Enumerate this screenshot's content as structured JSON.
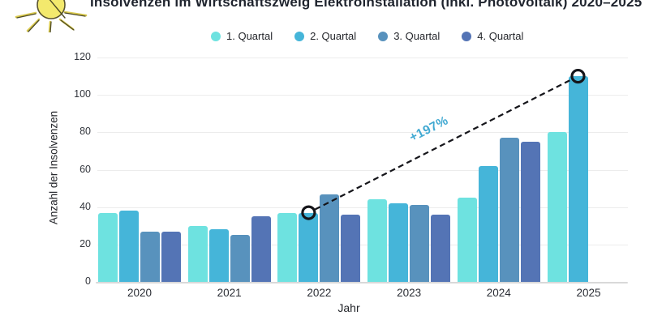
{
  "header": {
    "title": "Insolvenzen im Wirtschaftszweig Elektroinstallation (inkl. Photovoltaik) 2020–2025",
    "logo": "sun-icon"
  },
  "colors": {
    "background": "#ffffff",
    "grid": "#ececec",
    "axis_line": "#d9d9d9",
    "text": "#24262b",
    "annotation_text": "#41a9d2",
    "trend_line": "#15151a",
    "q1": "#6ee2e0",
    "q2": "#45b5d9",
    "q3": "#5892bd",
    "q4": "#5474b5"
  },
  "chart_data": {
    "type": "bar",
    "title": "Insolvenzen im Wirtschaftszweig Elektroinstallation (inkl. Photovoltaik) 2020–2025",
    "xlabel": "Jahr",
    "ylabel": "Anzahl der Insolvenzen",
    "ylim": [
      0,
      120
    ],
    "yticks": [
      0,
      20,
      40,
      60,
      80,
      100,
      120
    ],
    "grid": true,
    "legend_position": "top",
    "categories": [
      "2020",
      "2021",
      "2022",
      "2023",
      "2024",
      "2025"
    ],
    "series": [
      {
        "name": "1. Quartal",
        "color": "#6ee2e0",
        "values": [
          37,
          30,
          37,
          44,
          45,
          80
        ]
      },
      {
        "name": "2. Quartal",
        "color": "#45b5d9",
        "values": [
          38,
          28,
          37,
          42,
          62,
          110
        ]
      },
      {
        "name": "3. Quartal",
        "color": "#5892bd",
        "values": [
          27,
          25,
          47,
          41,
          77,
          null
        ]
      },
      {
        "name": "4. Quartal",
        "color": "#5474b5",
        "values": [
          27,
          35,
          36,
          36,
          75,
          null
        ]
      }
    ],
    "annotation": {
      "text": "+197%",
      "from": {
        "category": "2022",
        "series": "2. Quartal",
        "value": 37
      },
      "to": {
        "category": "2025",
        "series": "2. Quartal",
        "value": 110
      }
    }
  }
}
